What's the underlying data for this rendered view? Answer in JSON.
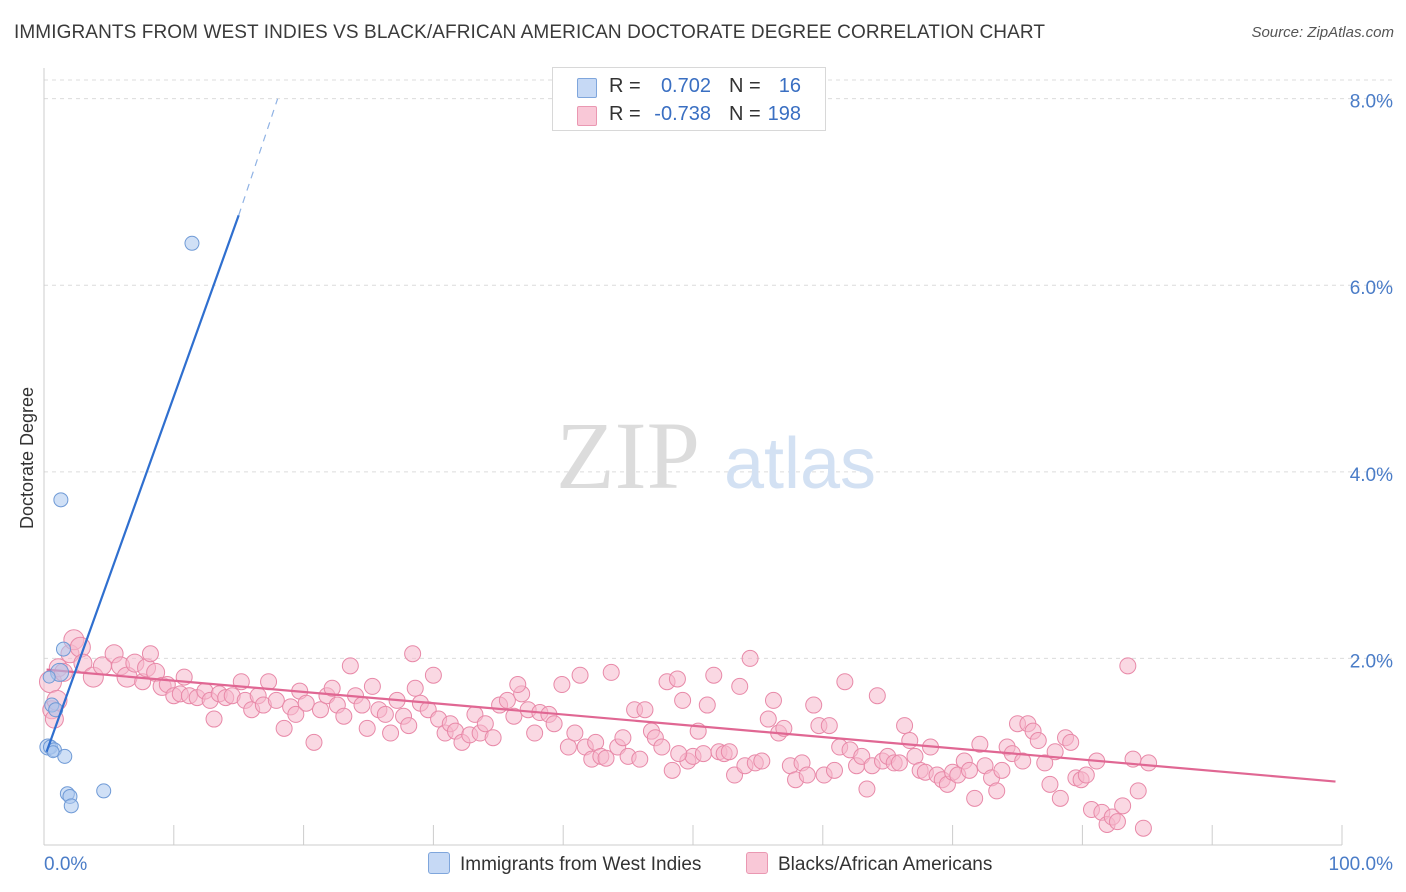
{
  "chart_data": {
    "type": "scatter",
    "title": "IMMIGRANTS FROM WEST INDIES VS BLACK/AFRICAN AMERICAN DOCTORATE DEGREE CORRELATION CHART",
    "source": "Source: ZipAtlas.com",
    "xlabel": "",
    "ylabel": "Doctorate Degree",
    "xlim": [
      0,
      100
    ],
    "ylim": [
      0,
      8.2
    ],
    "y_ticks": [
      {
        "value": 2,
        "label": "2.0%"
      },
      {
        "value": 4,
        "label": "4.0%"
      },
      {
        "value": 6,
        "label": "6.0%"
      },
      {
        "value": 8,
        "label": "8.0%"
      }
    ],
    "x_tick_labels": {
      "min": "0.0%",
      "max": "100.0%"
    },
    "x_minor_ticks": [
      10,
      20,
      30,
      40,
      50,
      60,
      70,
      80,
      90,
      100
    ],
    "watermark": {
      "zip": "ZIP",
      "atlas": "atlas"
    },
    "legend": {
      "rows": [
        {
          "r_label": "R =",
          "r_value": "0.702",
          "n_label": "N =",
          "n_value": "16"
        },
        {
          "r_label": "R =",
          "r_value": "-0.738",
          "n_label": "N =",
          "n_value": "198"
        }
      ]
    },
    "series": [
      {
        "name": "Immigrants from West Indies",
        "color": "#a9c6ee",
        "stroke": "#6f9ad6",
        "line_color": "#2f6fcf",
        "trend": {
          "x0": 0.2,
          "y0": 1.0,
          "x1": 15,
          "y1": 6.75,
          "dash_to_x": 18,
          "dash_to_y": 8.0
        },
        "points": [
          [
            0.3,
            1.05,
            8
          ],
          [
            0.5,
            1.05,
            7
          ],
          [
            0.8,
            1.02,
            7
          ],
          [
            0.6,
            1.5,
            7
          ],
          [
            0.9,
            1.45,
            7
          ],
          [
            1.2,
            1.85,
            9
          ],
          [
            1.3,
            3.7,
            7
          ],
          [
            1.5,
            2.1,
            7
          ],
          [
            1.6,
            0.95,
            7
          ],
          [
            1.8,
            0.55,
            7
          ],
          [
            2.0,
            0.52,
            7
          ],
          [
            2.1,
            0.42,
            7
          ],
          [
            4.6,
            0.58,
            7
          ],
          [
            11.4,
            6.45,
            7
          ],
          [
            0.4,
            1.8,
            6
          ],
          [
            0.7,
            1.0,
            6
          ]
        ]
      },
      {
        "name": "Blacks/African Americans",
        "color": "#f6b8cc",
        "stroke": "#e889a8",
        "line_color": "#e06793",
        "trend": {
          "x0": 0.2,
          "y0": 1.88,
          "x1": 99.5,
          "y1": 0.68
        },
        "points": [
          [
            0.5,
            1.75,
            11
          ],
          [
            0.6,
            1.45,
            9
          ],
          [
            0.8,
            1.35,
            9
          ],
          [
            1.0,
            1.55,
            10
          ],
          [
            1.1,
            1.9,
            9
          ],
          [
            1.5,
            1.85,
            9
          ],
          [
            2.0,
            2.05,
            9
          ],
          [
            2.3,
            2.2,
            10
          ],
          [
            2.8,
            2.12,
            10
          ],
          [
            3.0,
            1.95,
            9
          ],
          [
            3.8,
            1.8,
            10
          ],
          [
            4.5,
            1.92,
            9
          ],
          [
            5.4,
            2.05,
            9
          ],
          [
            5.9,
            1.92,
            9
          ],
          [
            6.4,
            1.8,
            10
          ],
          [
            7.0,
            1.95,
            9
          ],
          [
            7.6,
            1.75,
            8
          ],
          [
            7.9,
            1.9,
            9
          ],
          [
            8.2,
            2.05,
            8
          ],
          [
            8.6,
            1.85,
            9
          ],
          [
            9.1,
            1.7,
            9
          ],
          [
            9.5,
            1.72,
            8
          ],
          [
            10.0,
            1.6,
            8
          ],
          [
            10.5,
            1.62,
            8
          ],
          [
            10.8,
            1.8,
            8
          ],
          [
            11.2,
            1.6,
            8
          ],
          [
            11.8,
            1.58,
            8
          ],
          [
            12.4,
            1.65,
            8
          ],
          [
            12.8,
            1.55,
            8
          ],
          [
            13.1,
            1.35,
            8
          ],
          [
            13.5,
            1.62,
            8
          ],
          [
            14.0,
            1.58,
            8
          ],
          [
            14.5,
            1.6,
            8
          ],
          [
            15.2,
            1.75,
            8
          ],
          [
            15.5,
            1.55,
            8
          ],
          [
            16.0,
            1.45,
            8
          ],
          [
            16.5,
            1.6,
            8
          ],
          [
            16.9,
            1.5,
            8
          ],
          [
            17.3,
            1.75,
            8
          ],
          [
            17.9,
            1.55,
            8
          ],
          [
            18.5,
            1.25,
            8
          ],
          [
            19.0,
            1.48,
            8
          ],
          [
            19.4,
            1.4,
            8
          ],
          [
            19.7,
            1.65,
            8
          ],
          [
            20.2,
            1.52,
            8
          ],
          [
            20.8,
            1.1,
            8
          ],
          [
            21.3,
            1.45,
            8
          ],
          [
            21.8,
            1.6,
            8
          ],
          [
            22.2,
            1.68,
            8
          ],
          [
            22.6,
            1.5,
            8
          ],
          [
            23.1,
            1.38,
            8
          ],
          [
            23.6,
            1.92,
            8
          ],
          [
            24.0,
            1.6,
            8
          ],
          [
            24.5,
            1.5,
            8
          ],
          [
            24.9,
            1.25,
            8
          ],
          [
            25.3,
            1.7,
            8
          ],
          [
            25.8,
            1.45,
            8
          ],
          [
            26.3,
            1.4,
            8
          ],
          [
            26.7,
            1.2,
            8
          ],
          [
            27.2,
            1.55,
            8
          ],
          [
            27.7,
            1.38,
            8
          ],
          [
            28.1,
            1.28,
            8
          ],
          [
            28.6,
            1.68,
            8
          ],
          [
            29.0,
            1.52,
            8
          ],
          [
            29.6,
            1.45,
            8
          ],
          [
            30.0,
            1.82,
            8
          ],
          [
            30.4,
            1.35,
            8
          ],
          [
            30.9,
            1.2,
            8
          ],
          [
            31.3,
            1.3,
            8
          ],
          [
            31.7,
            1.22,
            8
          ],
          [
            32.2,
            1.1,
            8
          ],
          [
            32.8,
            1.18,
            8
          ],
          [
            33.2,
            1.4,
            8
          ],
          [
            33.6,
            1.2,
            8
          ],
          [
            34.0,
            1.3,
            8
          ],
          [
            34.6,
            1.15,
            8
          ],
          [
            35.1,
            1.5,
            8
          ],
          [
            35.7,
            1.55,
            8
          ],
          [
            36.2,
            1.38,
            8
          ],
          [
            36.8,
            1.62,
            8
          ],
          [
            37.3,
            1.45,
            8
          ],
          [
            37.8,
            1.2,
            8
          ],
          [
            38.2,
            1.42,
            8
          ],
          [
            38.9,
            1.4,
            8
          ],
          [
            39.3,
            1.3,
            8
          ],
          [
            39.9,
            1.72,
            8
          ],
          [
            40.4,
            1.05,
            8
          ],
          [
            40.9,
            1.2,
            8
          ],
          [
            41.3,
            1.82,
            8
          ],
          [
            41.7,
            1.05,
            8
          ],
          [
            42.2,
            0.92,
            8
          ],
          [
            42.5,
            1.1,
            8
          ],
          [
            42.9,
            0.95,
            8
          ],
          [
            43.3,
            0.93,
            8
          ],
          [
            43.7,
            1.85,
            8
          ],
          [
            44.2,
            1.05,
            8
          ],
          [
            44.6,
            1.15,
            8
          ],
          [
            45.0,
            0.95,
            8
          ],
          [
            45.5,
            1.45,
            8
          ],
          [
            45.9,
            0.92,
            8
          ],
          [
            46.3,
            1.45,
            8
          ],
          [
            46.8,
            1.22,
            8
          ],
          [
            47.1,
            1.15,
            8
          ],
          [
            47.6,
            1.05,
            8
          ],
          [
            48.0,
            1.75,
            8
          ],
          [
            48.4,
            0.8,
            8
          ],
          [
            48.8,
            1.78,
            8
          ],
          [
            49.2,
            1.55,
            8
          ],
          [
            49.6,
            0.9,
            8
          ],
          [
            50.0,
            0.95,
            8
          ],
          [
            50.4,
            1.22,
            8
          ],
          [
            50.8,
            0.98,
            8
          ],
          [
            51.1,
            1.5,
            8
          ],
          [
            51.6,
            1.82,
            8
          ],
          [
            52.0,
            1.0,
            8
          ],
          [
            52.4,
            0.98,
            8
          ],
          [
            52.8,
            1.0,
            8
          ],
          [
            53.2,
            0.75,
            8
          ],
          [
            53.6,
            1.7,
            8
          ],
          [
            54.0,
            0.85,
            8
          ],
          [
            54.4,
            2.0,
            8
          ],
          [
            54.8,
            0.88,
            8
          ],
          [
            55.3,
            0.9,
            8
          ],
          [
            55.8,
            1.35,
            8
          ],
          [
            56.2,
            1.55,
            8
          ],
          [
            56.6,
            1.2,
            8
          ],
          [
            57.0,
            1.25,
            8
          ],
          [
            57.5,
            0.85,
            8
          ],
          [
            57.9,
            0.7,
            8
          ],
          [
            58.4,
            0.88,
            8
          ],
          [
            58.8,
            0.75,
            8
          ],
          [
            59.3,
            1.5,
            8
          ],
          [
            59.7,
            1.28,
            8
          ],
          [
            60.1,
            0.75,
            8
          ],
          [
            60.5,
            1.28,
            8
          ],
          [
            60.9,
            0.8,
            8
          ],
          [
            61.3,
            1.05,
            8
          ],
          [
            61.7,
            1.75,
            8
          ],
          [
            62.1,
            1.02,
            8
          ],
          [
            62.6,
            0.85,
            8
          ],
          [
            63.0,
            0.95,
            8
          ],
          [
            63.4,
            0.6,
            8
          ],
          [
            63.8,
            0.85,
            8
          ],
          [
            64.2,
            1.6,
            8
          ],
          [
            64.6,
            0.9,
            8
          ],
          [
            65.0,
            0.95,
            8
          ],
          [
            65.5,
            0.88,
            8
          ],
          [
            65.9,
            0.88,
            8
          ],
          [
            66.3,
            1.28,
            8
          ],
          [
            66.7,
            1.12,
            8
          ],
          [
            67.1,
            0.95,
            8
          ],
          [
            67.5,
            0.8,
            8
          ],
          [
            67.9,
            0.78,
            8
          ],
          [
            68.3,
            1.05,
            8
          ],
          [
            68.8,
            0.75,
            8
          ],
          [
            69.2,
            0.7,
            8
          ],
          [
            69.6,
            0.65,
            8
          ],
          [
            70.0,
            0.78,
            8
          ],
          [
            70.4,
            0.75,
            8
          ],
          [
            70.9,
            0.9,
            8
          ],
          [
            71.3,
            0.8,
            8
          ],
          [
            71.7,
            0.5,
            8
          ],
          [
            72.1,
            1.08,
            8
          ],
          [
            72.5,
            0.85,
            8
          ],
          [
            73.0,
            0.72,
            8
          ],
          [
            73.4,
            0.58,
            8
          ],
          [
            73.8,
            0.8,
            8
          ],
          [
            74.2,
            1.05,
            8
          ],
          [
            74.6,
            0.98,
            8
          ],
          [
            75.0,
            1.3,
            8
          ],
          [
            75.4,
            0.9,
            8
          ],
          [
            75.8,
            1.3,
            8
          ],
          [
            76.2,
            1.22,
            8
          ],
          [
            76.6,
            1.12,
            8
          ],
          [
            77.1,
            0.88,
            8
          ],
          [
            77.5,
            0.65,
            8
          ],
          [
            77.9,
            1.0,
            8
          ],
          [
            78.3,
            0.5,
            8
          ],
          [
            78.7,
            1.15,
            8
          ],
          [
            79.1,
            1.1,
            8
          ],
          [
            79.5,
            0.72,
            8
          ],
          [
            79.9,
            0.7,
            8
          ],
          [
            80.3,
            0.75,
            8
          ],
          [
            80.7,
            0.38,
            8
          ],
          [
            81.1,
            0.9,
            8
          ],
          [
            81.5,
            0.35,
            8
          ],
          [
            81.9,
            0.22,
            8
          ],
          [
            82.3,
            0.3,
            8
          ],
          [
            82.7,
            0.25,
            8
          ],
          [
            83.1,
            0.42,
            8
          ],
          [
            83.5,
            1.92,
            8
          ],
          [
            83.9,
            0.92,
            8
          ],
          [
            84.3,
            0.58,
            8
          ],
          [
            84.7,
            0.18,
            8
          ],
          [
            85.1,
            0.88,
            8
          ],
          [
            48.9,
            0.98,
            8
          ],
          [
            36.5,
            1.72,
            8
          ],
          [
            28.4,
            2.05,
            8
          ]
        ]
      }
    ]
  }
}
